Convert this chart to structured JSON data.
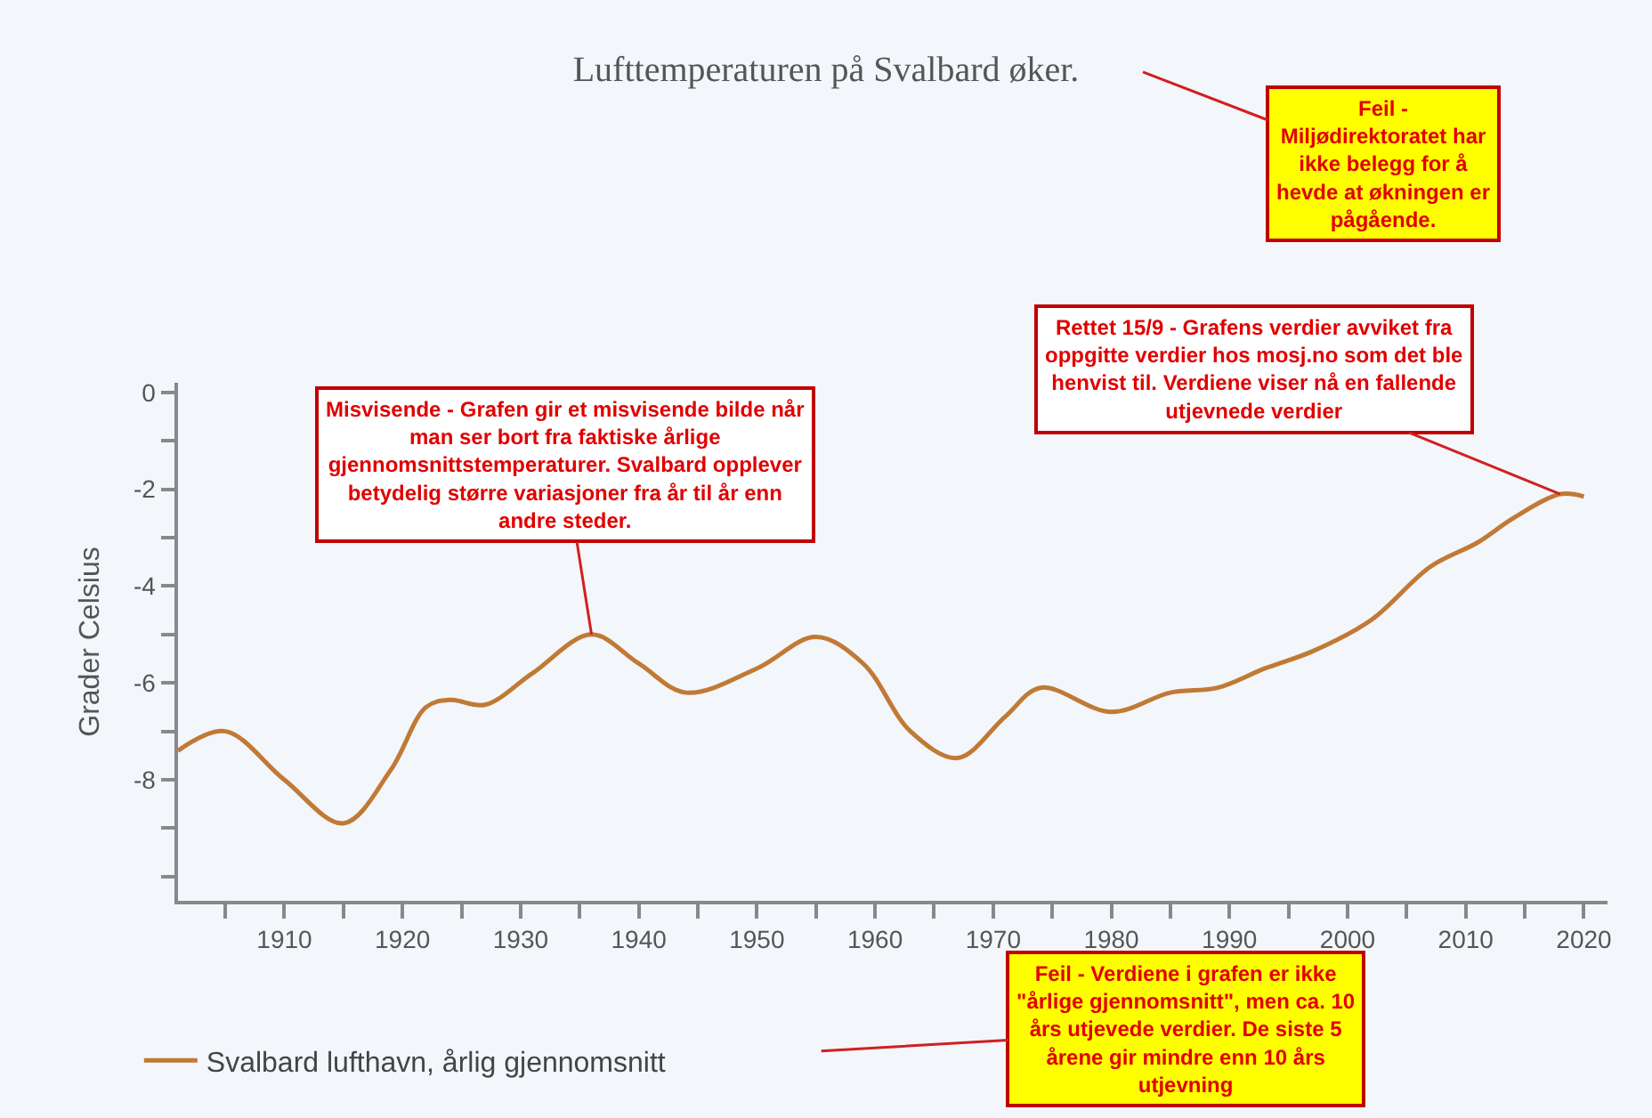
{
  "chart_data": {
    "type": "line",
    "title": "Lufttemperaturen på Svalbard øker.",
    "ylabel": "Grader Celsius",
    "x": [
      1901,
      1905,
      1910,
      1915,
      1919,
      1922,
      1924,
      1927,
      1931,
      1936,
      1940,
      1944,
      1950,
      1955,
      1959,
      1963,
      1967,
      1971,
      1974,
      1980,
      1985,
      1989,
      1993,
      1997,
      2002,
      2007,
      2011,
      2014,
      2018,
      2020
    ],
    "series": [
      {
        "name": "Svalbard lufthavn, årlig gjennomsnitt",
        "color": "#c07a35",
        "values": [
          -7.4,
          -7.0,
          -8.0,
          -8.9,
          -7.8,
          -6.5,
          -6.35,
          -6.45,
          -5.8,
          -5.0,
          -5.6,
          -6.2,
          -5.7,
          -5.05,
          -5.6,
          -7.0,
          -7.55,
          -6.7,
          -6.1,
          -6.6,
          -6.2,
          -6.1,
          -5.7,
          -5.35,
          -4.7,
          -3.6,
          -3.1,
          -2.6,
          -2.1,
          -2.15
        ]
      }
    ],
    "xlim": [
      1901,
      2022
    ],
    "xticks": [
      {
        "value": 1905,
        "label": null
      },
      1910,
      {
        "value": 1915,
        "label": null
      },
      1920,
      {
        "value": 1925,
        "label": null
      },
      1930,
      {
        "value": 1935,
        "label": null
      },
      1940,
      {
        "value": 1945,
        "label": null
      },
      1950,
      {
        "value": 1955,
        "label": null
      },
      1960,
      {
        "value": 1965,
        "label": null
      },
      1970,
      {
        "value": 1975,
        "label": null
      },
      1980,
      {
        "value": 1985,
        "label": null
      },
      1990,
      {
        "value": 1995,
        "label": null
      },
      2000,
      {
        "value": 2005,
        "label": null
      },
      2010,
      {
        "value": 2015,
        "label": null
      },
      2020
    ],
    "ylim": [
      -10.5,
      0.2
    ],
    "yticks": [
      {
        "value": -10,
        "label": null
      },
      {
        "value": -9,
        "label": null
      },
      -8,
      {
        "value": -7,
        "label": null
      },
      -6,
      {
        "value": -5,
        "label": null
      },
      -4,
      {
        "value": -3,
        "label": null
      },
      -2,
      {
        "value": -1,
        "label": null
      },
      0
    ],
    "grid": false,
    "legend": "bottom left",
    "annotations": [
      "Feil - Miljødirektoratet har ikke belegg for å hevde at økningen er pågående.",
      {
        "text": "Misvisende - Grafen gir et misvisende bilde når man ser bort fra faktiske årlige gjennomsnittstemperaturer. Svalbard opplever betydelig større variasjoner fra år til år enn andre steder.",
        "x": 1936,
        "y": -5.0
      },
      {
        "text": "Rettet 15/9 - Grafens verdier avviket fra oppgitte verdier hos mosj.no som det ble henvist til. Verdiene viser nå en fallende utjevnede verdier",
        "x": 2018,
        "y": -2.1
      },
      "Feil - Verdiene i grafen er ikke \"årlige gjennomsnitt\", men ca. 10 års utjevede verdier. De siste 5 årene gir mindre enn 10 års utjevning"
    ]
  }
}
